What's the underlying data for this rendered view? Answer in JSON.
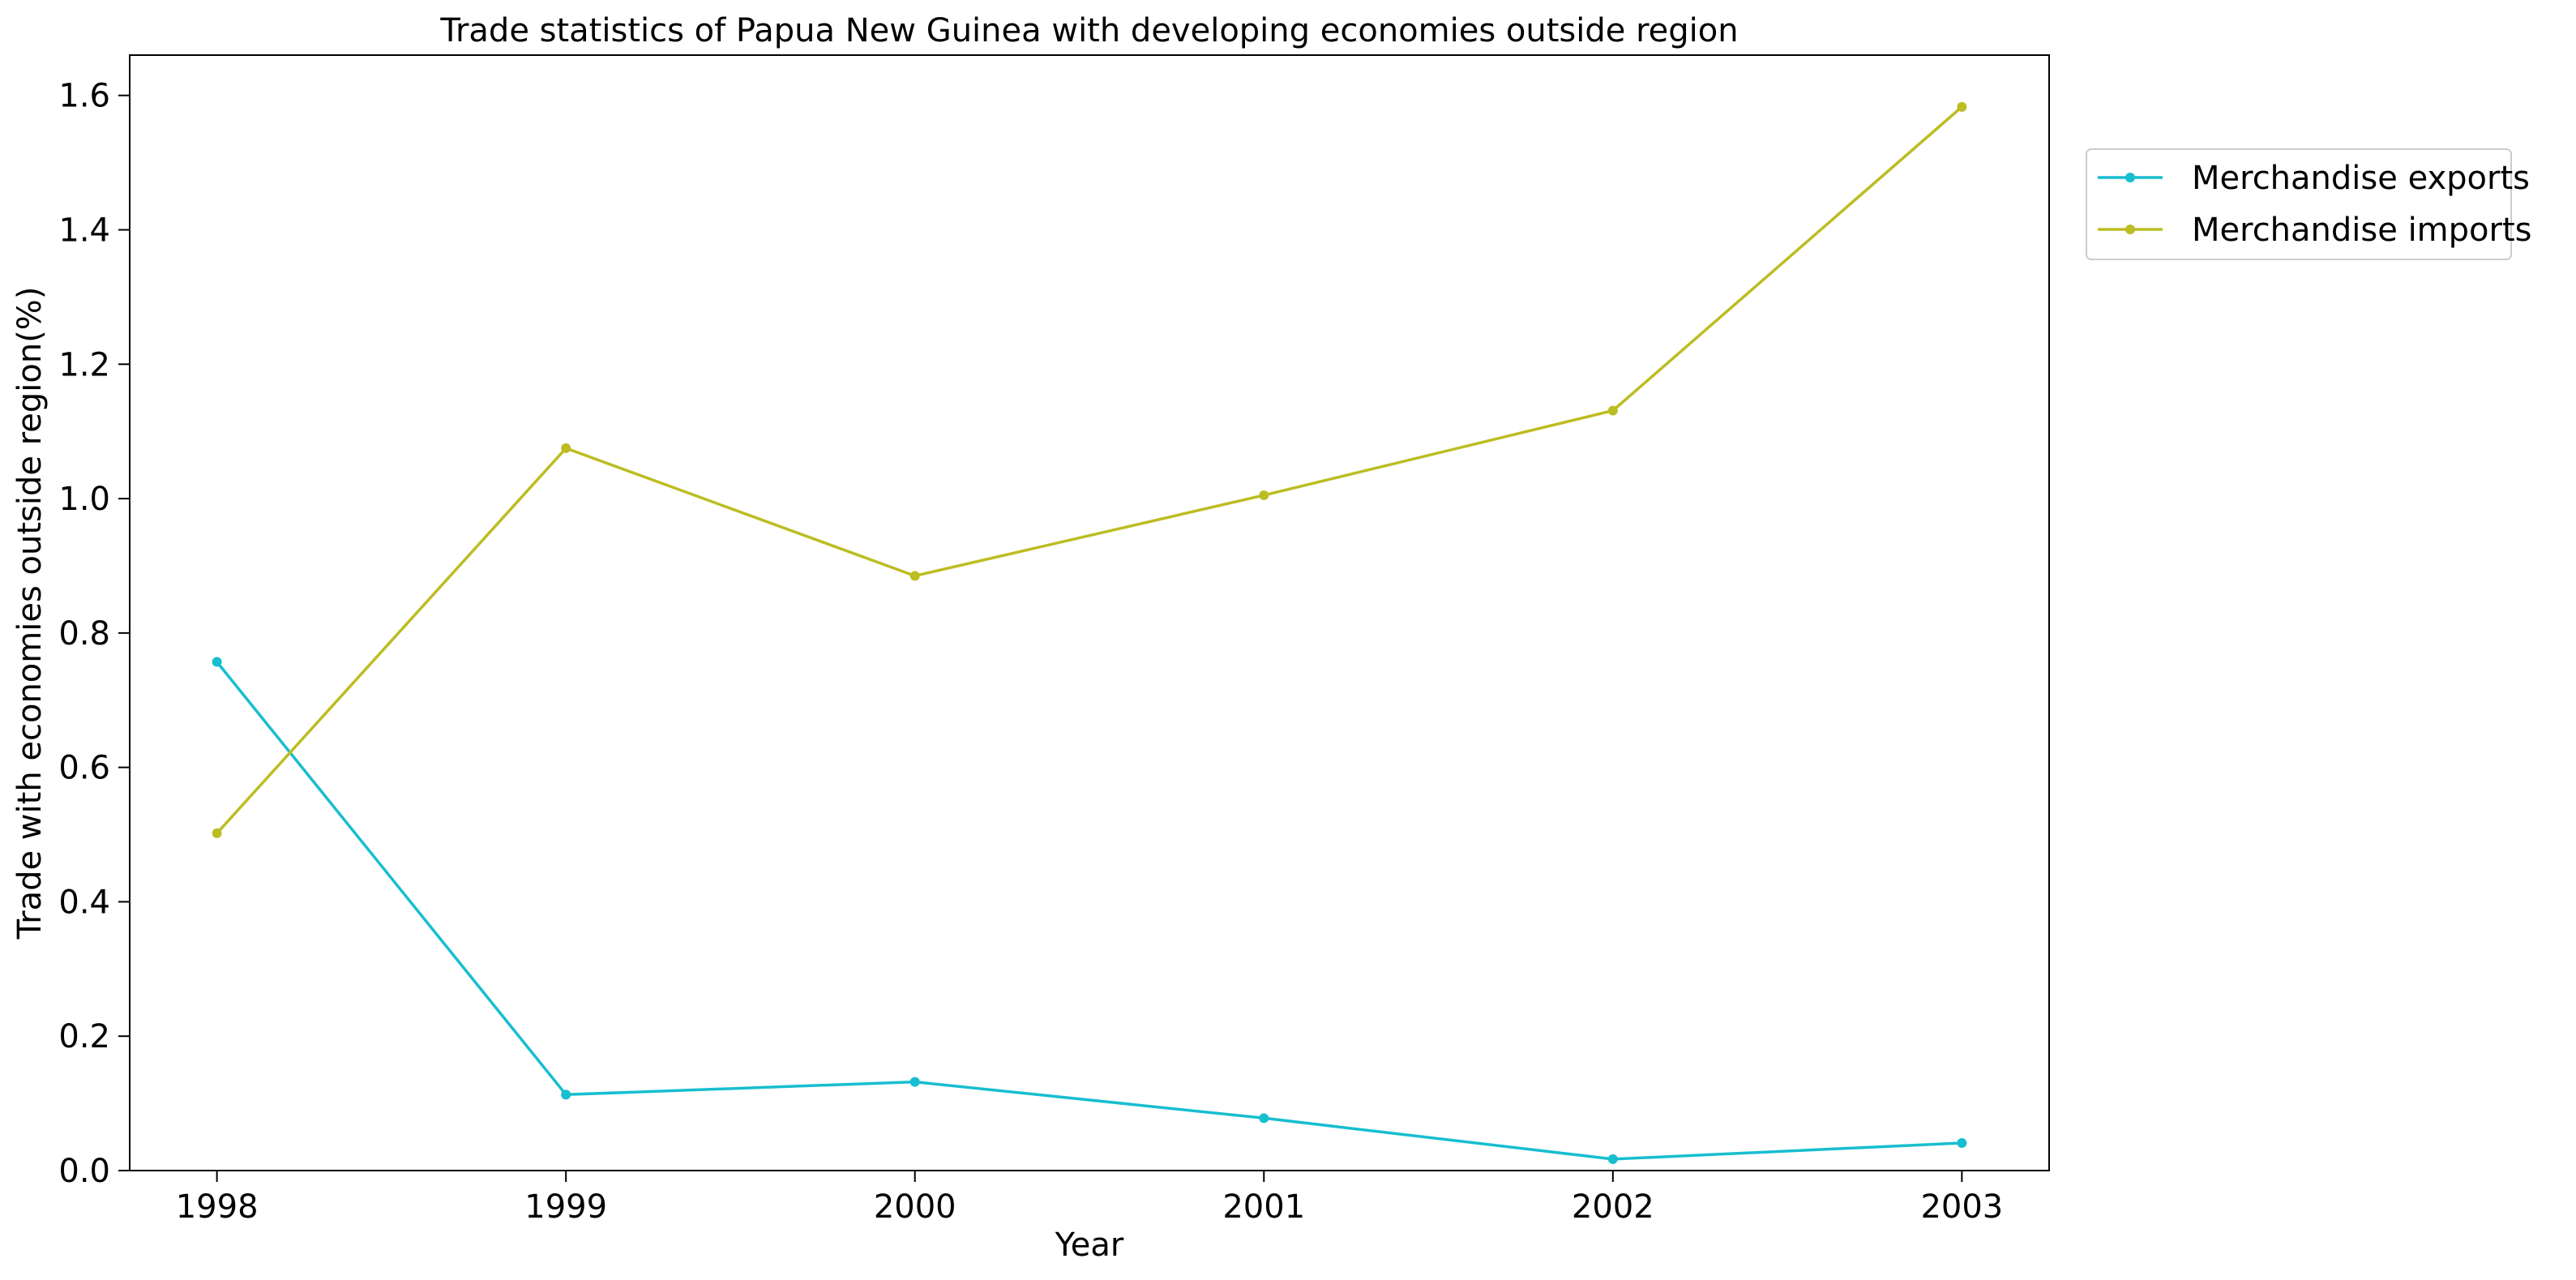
{
  "chart_data": {
    "type": "line",
    "title": "Trade statistics of Papua New Guinea with developing economies outside region",
    "xlabel": "Year",
    "ylabel": "Trade with economies outside region(%)",
    "x": [
      "1998",
      "1999",
      "2000",
      "2001",
      "2002",
      "2003"
    ],
    "xlim": [
      1997.75,
      2003.25
    ],
    "ylim": [
      0.0,
      1.66
    ],
    "yticks": [
      "0.0",
      "0.2",
      "0.4",
      "0.6",
      "0.8",
      "1.0",
      "1.2",
      "1.4",
      "1.6"
    ],
    "grid": false,
    "legend_position": "outside-top-right",
    "series": [
      {
        "name": "Merchandise exports",
        "color": "#17becf",
        "values": [
          0.757,
          0.113,
          0.132,
          0.078,
          0.017,
          0.041
        ]
      },
      {
        "name": "Merchandise imports",
        "color": "#bcbd22",
        "values": [
          0.502,
          1.075,
          0.885,
          1.005,
          1.131,
          1.583
        ]
      }
    ]
  }
}
